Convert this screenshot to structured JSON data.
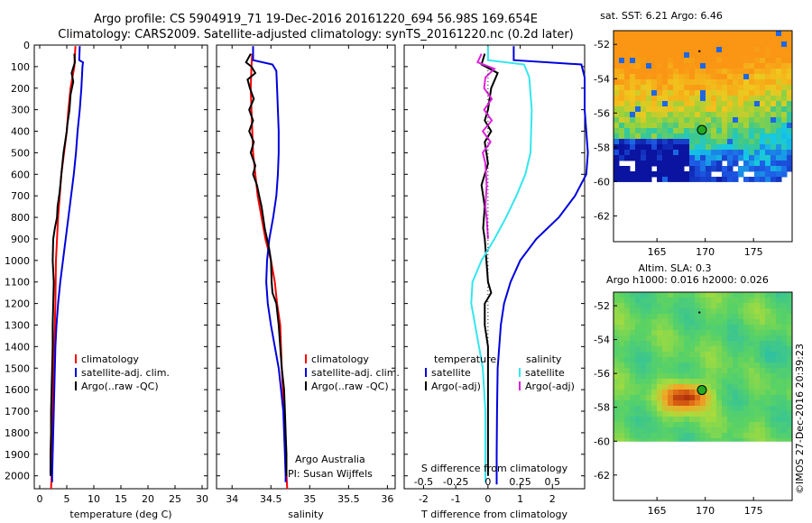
{
  "header": {
    "line1": "Argo profile: CS 5904919_71 19-Dec-2016 20161220_694 56.98S 169.654E",
    "line2": "Climatology: CARS2009. Satellite-adjusted climatology: synTS_20161220.nc (0.2d later)"
  },
  "colors": {
    "climatology": "#ff0000",
    "satellite": "#0000cc",
    "argo": "#000000",
    "sat_salt": "#22e0e8",
    "argo_salt_diff": "#dd22dd"
  },
  "chart_data": [
    {
      "type": "line",
      "panel": "temperature",
      "xlabel": "temperature (deg C)",
      "xlim": [
        -1,
        31
      ],
      "xticks": [
        0,
        5,
        10,
        15,
        20,
        25,
        30
      ],
      "ylim": [
        2060,
        0
      ],
      "yticks": [
        0,
        100,
        200,
        300,
        400,
        500,
        600,
        700,
        800,
        900,
        1000,
        1100,
        1200,
        1300,
        1400,
        1500,
        1600,
        1700,
        1800,
        1900,
        2000
      ],
      "legend": [
        "climatology",
        "satellite-adj. clim.",
        "Argo(..raw -QC)"
      ],
      "series": [
        {
          "name": "climatology",
          "color": "red",
          "points": [
            [
              6.6,
              5
            ],
            [
              6.4,
              100
            ],
            [
              5.7,
              200
            ],
            [
              5.3,
              300
            ],
            [
              5.0,
              400
            ],
            [
              4.5,
              500
            ],
            [
              4.0,
              600
            ],
            [
              3.7,
              700
            ],
            [
              3.4,
              800
            ],
            [
              3.2,
              900
            ],
            [
              3.0,
              1000
            ],
            [
              2.9,
              1200
            ],
            [
              2.7,
              1400
            ],
            [
              2.5,
              1600
            ],
            [
              2.3,
              1800
            ],
            [
              2.2,
              2000
            ],
            [
              2.1,
              2060
            ]
          ]
        },
        {
          "name": "satellite-adj. clim.",
          "color": "blue",
          "points": [
            [
              7.4,
              5
            ],
            [
              7.3,
              70
            ],
            [
              8.0,
              80
            ],
            [
              7.9,
              100
            ],
            [
              7.7,
              200
            ],
            [
              7.4,
              300
            ],
            [
              7.0,
              400
            ],
            [
              6.7,
              500
            ],
            [
              6.3,
              600
            ],
            [
              5.8,
              700
            ],
            [
              5.3,
              800
            ],
            [
              4.8,
              900
            ],
            [
              4.3,
              1000
            ],
            [
              3.8,
              1100
            ],
            [
              3.4,
              1200
            ],
            [
              3.1,
              1300
            ],
            [
              2.9,
              1400
            ],
            [
              2.7,
              1600
            ],
            [
              2.5,
              1800
            ],
            [
              2.3,
              2000
            ],
            [
              2.3,
              2030
            ]
          ]
        },
        {
          "name": "Argo(..raw -QC)",
          "color": "black",
          "points": [
            [
              6.4,
              40
            ],
            [
              6.5,
              80
            ],
            [
              5.9,
              130
            ],
            [
              6.2,
              170
            ],
            [
              5.7,
              230
            ],
            [
              5.5,
              300
            ],
            [
              5.1,
              370
            ],
            [
              5.0,
              400
            ],
            [
              4.7,
              450
            ],
            [
              4.4,
              500
            ],
            [
              4.0,
              600
            ],
            [
              3.7,
              680
            ],
            [
              3.3,
              750
            ],
            [
              3.2,
              800
            ],
            [
              2.8,
              850
            ],
            [
              2.5,
              900
            ],
            [
              2.4,
              1000
            ],
            [
              2.6,
              1100
            ],
            [
              2.5,
              1200
            ],
            [
              2.4,
              1300
            ],
            [
              2.4,
              1400
            ],
            [
              2.3,
              1500
            ],
            [
              2.2,
              1600
            ],
            [
              2.1,
              1700
            ],
            [
              2.1,
              1800
            ],
            [
              2.0,
              1900
            ],
            [
              2.0,
              2000
            ]
          ]
        }
      ]
    },
    {
      "type": "line",
      "panel": "salinity",
      "xlabel": "salinity",
      "xlim": [
        33.8,
        36.1
      ],
      "xticks": [
        34,
        34.5,
        35,
        35.5,
        36
      ],
      "ylim": [
        2060,
        0
      ],
      "legend": [
        "climatology",
        "satellite-adj. clim.",
        "Argo(..raw -QC)"
      ],
      "annotation": [
        "Argo Australia",
        "PI: Susan Wijffels"
      ],
      "series": [
        {
          "name": "climatology",
          "color": "red",
          "points": [
            [
              34.26,
              40
            ],
            [
              34.25,
              100
            ],
            [
              34.24,
              200
            ],
            [
              34.25,
              300
            ],
            [
              34.26,
              400
            ],
            [
              34.27,
              500
            ],
            [
              34.3,
              600
            ],
            [
              34.33,
              700
            ],
            [
              34.38,
              800
            ],
            [
              34.43,
              900
            ],
            [
              34.5,
              1000
            ],
            [
              34.55,
              1100
            ],
            [
              34.58,
              1200
            ],
            [
              34.62,
              1300
            ],
            [
              34.64,
              1500
            ],
            [
              34.67,
              1700
            ],
            [
              34.69,
              1900
            ],
            [
              34.71,
              2060
            ]
          ]
        },
        {
          "name": "satellite-adj. clim.",
          "color": "blue",
          "points": [
            [
              34.27,
              5
            ],
            [
              34.27,
              70
            ],
            [
              34.52,
              90
            ],
            [
              34.57,
              120
            ],
            [
              34.58,
              200
            ],
            [
              34.59,
              300
            ],
            [
              34.6,
              400
            ],
            [
              34.6,
              500
            ],
            [
              34.59,
              600
            ],
            [
              34.57,
              700
            ],
            [
              34.53,
              800
            ],
            [
              34.48,
              900
            ],
            [
              34.45,
              1000
            ],
            [
              34.44,
              1100
            ],
            [
              34.46,
              1200
            ],
            [
              34.5,
              1300
            ],
            [
              34.55,
              1400
            ],
            [
              34.6,
              1500
            ],
            [
              34.63,
              1600
            ],
            [
              34.66,
              1700
            ],
            [
              34.67,
              1800
            ],
            [
              34.68,
              1900
            ],
            [
              34.69,
              2000
            ],
            [
              34.69,
              2030
            ]
          ]
        },
        {
          "name": "Argo(..raw -QC)",
          "color": "black",
          "points": [
            [
              34.24,
              40
            ],
            [
              34.18,
              80
            ],
            [
              34.25,
              100
            ],
            [
              34.3,
              130
            ],
            [
              34.2,
              160
            ],
            [
              34.23,
              200
            ],
            [
              34.28,
              250
            ],
            [
              34.22,
              300
            ],
            [
              34.27,
              350
            ],
            [
              34.22,
              400
            ],
            [
              34.28,
              450
            ],
            [
              34.24,
              500
            ],
            [
              34.3,
              560
            ],
            [
              34.27,
              600
            ],
            [
              34.32,
              650
            ],
            [
              34.35,
              700
            ],
            [
              34.38,
              750
            ],
            [
              34.4,
              800
            ],
            [
              34.42,
              850
            ],
            [
              34.45,
              900
            ],
            [
              34.48,
              950
            ],
            [
              34.5,
              1000
            ],
            [
              34.51,
              1100
            ],
            [
              34.52,
              1150
            ],
            [
              34.57,
              1200
            ],
            [
              34.6,
              1300
            ],
            [
              34.62,
              1400
            ],
            [
              34.64,
              1500
            ],
            [
              34.67,
              1600
            ],
            [
              34.68,
              1700
            ],
            [
              34.69,
              1800
            ],
            [
              34.7,
              1900
            ],
            [
              34.7,
              2000
            ]
          ]
        }
      ]
    },
    {
      "type": "line",
      "panel": "difference",
      "xlabel": "T difference from climatology",
      "xlabel_top": "S difference from climatology",
      "xlim_T": [
        -2.6,
        3.0
      ],
      "xticks_T": [
        -2,
        -1,
        0,
        1,
        2
      ],
      "xticks_S": [
        -0.5,
        -0.25,
        0,
        0.25,
        0.5
      ],
      "xlim_S": [
        -0.65,
        0.75
      ],
      "ylim": [
        2060,
        0
      ],
      "legend_temperature": {
        "heading": "temperature",
        "items": [
          "satellite",
          "Argo(-adj)"
        ]
      },
      "legend_salinity": {
        "heading": "salinity",
        "items": [
          "satellite",
          "Argo(-adj)"
        ]
      },
      "series": [
        {
          "name": "temperature satellite",
          "color": "blue",
          "points": [
            [
              0.8,
              5
            ],
            [
              0.8,
              70
            ],
            [
              2.9,
              90
            ],
            [
              3.0,
              150
            ],
            [
              3.0,
              300
            ],
            [
              3.1,
              500
            ],
            [
              3.05,
              600
            ],
            [
              2.7,
              700
            ],
            [
              2.2,
              800
            ],
            [
              1.5,
              900
            ],
            [
              1.0,
              1000
            ],
            [
              0.7,
              1100
            ],
            [
              0.5,
              1200
            ],
            [
              0.4,
              1300
            ],
            [
              0.3,
              1500
            ],
            [
              0.28,
              1700
            ],
            [
              0.27,
              1900
            ],
            [
              0.27,
              2040
            ]
          ]
        },
        {
          "name": "temperature Argo(-adj)",
          "color": "black",
          "points": [
            [
              -0.1,
              40
            ],
            [
              -0.2,
              90
            ],
            [
              0.3,
              130
            ],
            [
              0.1,
              200
            ],
            [
              0.0,
              300
            ],
            [
              -0.1,
              350
            ],
            [
              0.1,
              400
            ],
            [
              -0.1,
              450
            ],
            [
              0.0,
              550
            ],
            [
              -0.2,
              650
            ],
            [
              -0.1,
              750
            ],
            [
              -0.15,
              850
            ],
            [
              -0.1,
              900
            ],
            [
              -0.05,
              1000
            ],
            [
              0.0,
              1100
            ],
            [
              0.1,
              1150
            ],
            [
              -0.1,
              1200
            ],
            [
              -0.1,
              1300
            ],
            [
              0.0,
              1400
            ],
            [
              0.0,
              1600
            ],
            [
              0.0,
              1800
            ],
            [
              0.0,
              2000
            ]
          ]
        },
        {
          "name": "salinity satellite",
          "color": "cyan",
          "points": [
            [
              0.0,
              5
            ],
            [
              0.0,
              70
            ],
            [
              0.28,
              90
            ],
            [
              0.32,
              150
            ],
            [
              0.34,
              300
            ],
            [
              0.33,
              500
            ],
            [
              0.29,
              600
            ],
            [
              0.22,
              700
            ],
            [
              0.14,
              800
            ],
            [
              0.05,
              900
            ],
            [
              -0.05,
              1000
            ],
            [
              -0.12,
              1100
            ],
            [
              -0.13,
              1200
            ],
            [
              -0.1,
              1300
            ],
            [
              -0.07,
              1400
            ],
            [
              -0.04,
              1500
            ],
            [
              -0.02,
              1700
            ],
            [
              -0.02,
              1900
            ],
            [
              -0.02,
              2030
            ]
          ]
        },
        {
          "name": "salinity Argo(-adj)",
          "color": "magenta",
          "points": [
            [
              -0.05,
              40
            ],
            [
              -0.08,
              80
            ],
            [
              0.05,
              110
            ],
            [
              -0.02,
              150
            ],
            [
              -0.03,
              200
            ],
            [
              0.03,
              250
            ],
            [
              -0.03,
              300
            ],
            [
              0.03,
              350
            ],
            [
              -0.04,
              400
            ],
            [
              0.02,
              450
            ],
            [
              -0.04,
              500
            ],
            [
              -0.02,
              550
            ],
            [
              -0.01,
              650
            ],
            [
              -0.02,
              750
            ],
            [
              -0.01,
              800
            ],
            [
              0.0,
              900
            ]
          ]
        }
      ]
    },
    {
      "type": "heatmap",
      "panel": "sst_map",
      "title": "sat. SST: 6.21  Argo: 6.46",
      "xticks": [
        165,
        170,
        175
      ],
      "yticks": [
        -52,
        -54,
        -56,
        -58,
        -60,
        -62
      ],
      "xlim": [
        160.5,
        179
      ],
      "ylim": [
        -63.5,
        -51.2
      ],
      "argo_position": [
        169.654,
        -56.98
      ]
    },
    {
      "type": "heatmap",
      "panel": "sla_map",
      "title": "Altim. SLA: 0.3",
      "subtitle": "Argo h1000: 0.016  h2000: 0.026",
      "xticks": [
        165,
        170,
        175
      ],
      "yticks": [
        -52,
        -54,
        -56,
        -58,
        -60,
        -62
      ],
      "xlim": [
        160.5,
        179
      ],
      "ylim": [
        -63.5,
        -51.2
      ],
      "argo_position": [
        169.654,
        -56.98
      ]
    }
  ],
  "side_note": "©IMOS 27-Dec-2016 20:39:23"
}
